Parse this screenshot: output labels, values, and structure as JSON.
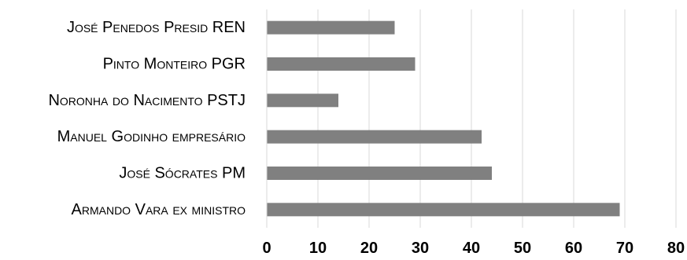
{
  "chart_data": {
    "type": "bar",
    "orientation": "horizontal",
    "categories": [
      "José Penedos Presid REN",
      "Pinto Monteiro PGR",
      "Noronha do Nacimento PSTJ",
      "Manuel Godinho empresário",
      "José Sócrates PM",
      "Armando Vara ex ministro"
    ],
    "values": [
      25,
      29,
      14,
      42,
      44,
      69
    ],
    "xlim": [
      0,
      80
    ],
    "xticks": [
      "0",
      "10",
      "20",
      "30",
      "40",
      "50",
      "60",
      "70",
      "80"
    ],
    "grid": true,
    "bar_color": "#808080",
    "grid_color": "#d9d9d9",
    "title": "",
    "xlabel": "",
    "ylabel": ""
  }
}
